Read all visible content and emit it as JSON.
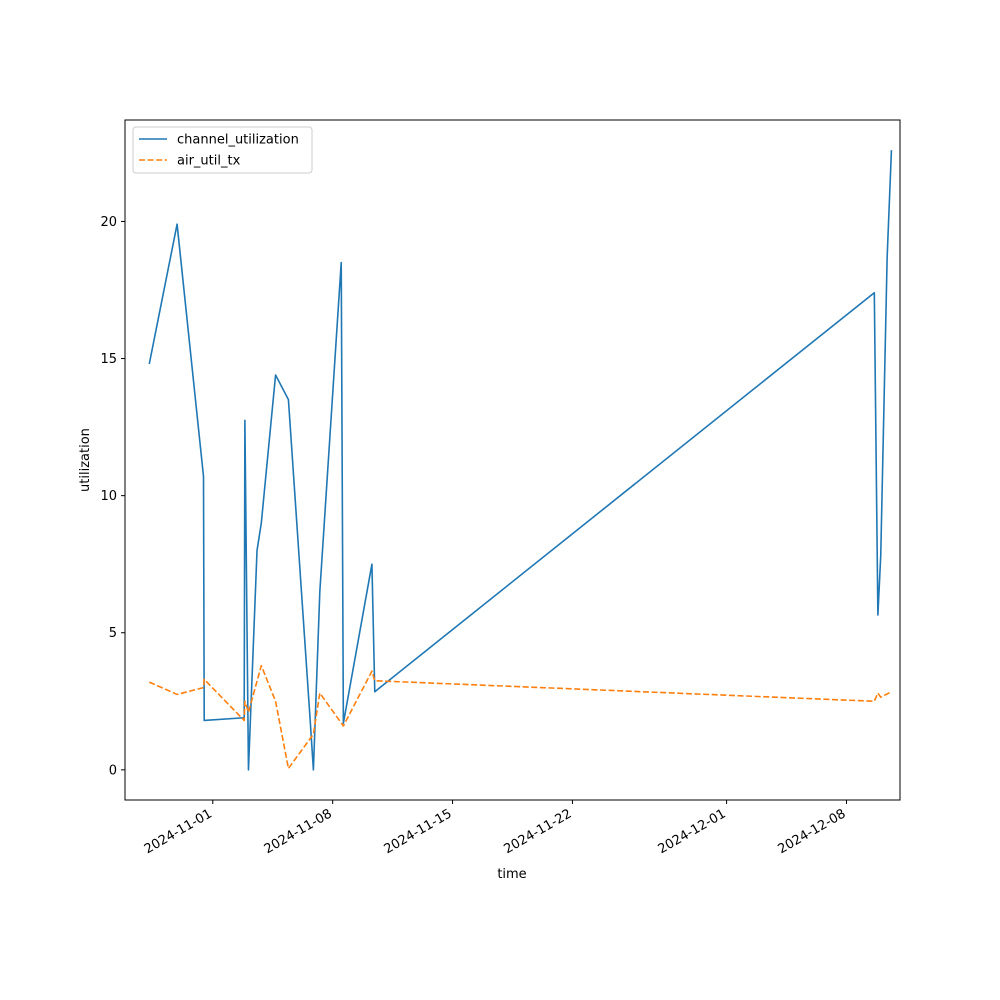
{
  "chart_data": {
    "type": "line",
    "title": "",
    "xlabel": "time",
    "ylabel": "utilization",
    "x_axis_type": "date",
    "xlim": [
      "2024-10-26T21:00",
      "2024-12-11T03:00"
    ],
    "ylim": [
      -1.1,
      23.7
    ],
    "x_ticks": [
      {
        "date": "2024-11-01",
        "label": "2024-11-01"
      },
      {
        "date": "2024-11-08",
        "label": "2024-11-08"
      },
      {
        "date": "2024-11-15",
        "label": "2024-11-15"
      },
      {
        "date": "2024-11-22",
        "label": "2024-11-22"
      },
      {
        "date": "2024-12-01",
        "label": "2024-12-01"
      },
      {
        "date": "2024-12-08",
        "label": "2024-12-08"
      }
    ],
    "y_ticks": [
      0,
      5,
      10,
      15,
      20
    ],
    "grid": false,
    "legend_position": "top-left",
    "series": [
      {
        "name": "channel_utilization",
        "color": "#1f77b4",
        "dash": "solid",
        "points": [
          [
            "2024-10-28T07:00",
            14.8
          ],
          [
            "2024-10-29T22:00",
            19.9
          ],
          [
            "2024-10-31T11:00",
            10.7
          ],
          [
            "2024-10-31T12:00",
            1.8
          ],
          [
            "2024-11-02T20:00",
            1.9
          ],
          [
            "2024-11-02T21:00",
            12.75
          ],
          [
            "2024-11-03T02:00",
            0.0
          ],
          [
            "2024-11-03T14:00",
            8.0
          ],
          [
            "2024-11-03T20:00",
            9.0
          ],
          [
            "2024-11-04T16:00",
            14.4
          ],
          [
            "2024-11-05T10:00",
            13.5
          ],
          [
            "2024-11-06T16:00",
            2.0
          ],
          [
            "2024-11-06T21:00",
            0.0
          ],
          [
            "2024-11-07T06:00",
            6.5
          ],
          [
            "2024-11-08T12:00",
            18.5
          ],
          [
            "2024-11-08T15:00",
            1.7
          ],
          [
            "2024-11-10T07:00",
            7.5
          ],
          [
            "2024-11-10T11:00",
            2.85
          ],
          [
            "2024-12-09T15:00",
            17.4
          ],
          [
            "2024-12-09T20:00",
            5.65
          ],
          [
            "2024-12-10T00:00",
            7.8
          ],
          [
            "2024-12-10T09:00",
            18.7
          ],
          [
            "2024-12-10T15:00",
            22.6
          ]
        ]
      },
      {
        "name": "air_util_tx",
        "color": "#ff7f0e",
        "dash": "dashed",
        "points": [
          [
            "2024-10-28T07:00",
            3.2
          ],
          [
            "2024-10-29T22:00",
            2.75
          ],
          [
            "2024-10-31T11:00",
            3.0
          ],
          [
            "2024-10-31T12:00",
            3.3
          ],
          [
            "2024-11-02T20:00",
            1.8
          ],
          [
            "2024-11-02T21:00",
            2.5
          ],
          [
            "2024-11-03T02:00",
            2.1
          ],
          [
            "2024-11-03T20:00",
            3.8
          ],
          [
            "2024-11-04T16:00",
            2.5
          ],
          [
            "2024-11-05T10:00",
            0.05
          ],
          [
            "2024-11-06T21:00",
            1.3
          ],
          [
            "2024-11-07T06:00",
            2.8
          ],
          [
            "2024-11-08T15:00",
            1.6
          ],
          [
            "2024-11-10T07:00",
            3.6
          ],
          [
            "2024-11-10T11:00",
            3.25
          ],
          [
            "2024-12-09T15:00",
            2.5
          ],
          [
            "2024-12-09T20:00",
            2.8
          ],
          [
            "2024-12-10T00:00",
            2.65
          ],
          [
            "2024-12-10T15:00",
            2.85
          ]
        ]
      }
    ]
  }
}
